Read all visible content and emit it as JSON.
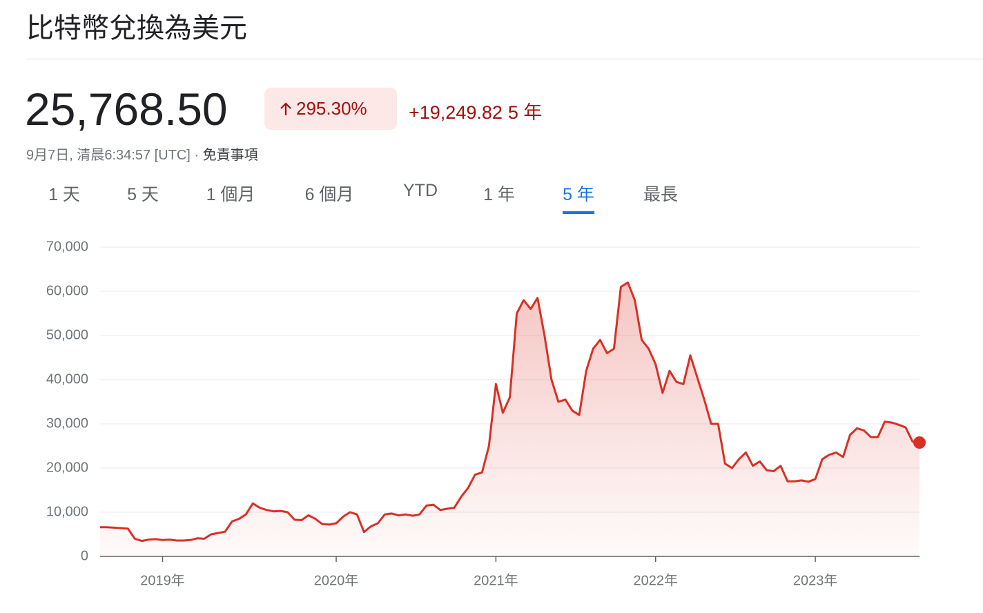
{
  "header": {
    "title": "比特幣兌換為美元"
  },
  "quote": {
    "price": "25,768.50",
    "change_percent": "295.30%",
    "change_value": "+19,249.82",
    "period": "5 年",
    "timestamp": "9月7日, 清晨6:34:57 [UTC] · ",
    "disclaimer": "免責事項"
  },
  "tabs": {
    "items": [
      "1 天",
      "5 天",
      "1 個月",
      "6 個月",
      "YTD",
      "1 年",
      "5 年",
      "最長"
    ],
    "active": 6
  },
  "chart_data": {
    "type": "line",
    "color": "#d93025",
    "categories": [
      null,
      null,
      null,
      null,
      null,
      null,
      null,
      null,
      null,
      "2019年",
      null,
      null,
      null,
      null,
      null,
      null,
      null,
      null,
      null,
      null,
      null,
      null,
      null,
      null,
      null,
      null,
      null,
      null,
      null,
      null,
      null,
      null,
      null,
      null,
      "2020年",
      null,
      null,
      null,
      null,
      null,
      null,
      null,
      null,
      null,
      null,
      null,
      null,
      null,
      null,
      null,
      null,
      null,
      null,
      null,
      null,
      null,
      null,
      "2021年",
      null,
      null,
      null,
      null,
      null,
      null,
      null,
      null,
      null,
      null,
      null,
      null,
      null,
      null,
      null,
      null,
      null,
      null,
      null,
      null,
      null,
      null,
      "2022年",
      null,
      null,
      null,
      null,
      null,
      null,
      null,
      null,
      null,
      null,
      null,
      null,
      null,
      null,
      null,
      null,
      null,
      null,
      null,
      null,
      null,
      null,
      "2023年",
      null,
      null,
      null,
      null,
      null,
      null,
      null,
      null,
      null,
      null,
      null,
      null,
      null,
      null,
      null
    ],
    "values": [
      6600,
      6600,
      6500,
      6400,
      6300,
      4000,
      3500,
      3800,
      3900,
      3700,
      3800,
      3600,
      3600,
      3700,
      4100,
      4000,
      5000,
      5300,
      5600,
      7900,
      8500,
      9500,
      12000,
      11000,
      10500,
      10200,
      10300,
      10000,
      8300,
      8200,
      9300,
      8500,
      7300,
      7200,
      7500,
      9000,
      10000,
      9500,
      5500,
      6800,
      7500,
      9500,
      9700,
      9300,
      9500,
      9200,
      9500,
      11500,
      11700,
      10500,
      10800,
      11000,
      13500,
      15500,
      18500,
      19000,
      25000,
      39000,
      32500,
      36000,
      55000,
      58000,
      56000,
      58500,
      50000,
      40000,
      35000,
      35500,
      33000,
      32000,
      42000,
      47000,
      49000,
      46000,
      47000,
      61000,
      62000,
      58000,
      49000,
      47000,
      43500,
      37000,
      42000,
      39500,
      39000,
      45500,
      40500,
      35500,
      30000,
      30000,
      21000,
      20000,
      22000,
      23500,
      20500,
      21500,
      19500,
      19300,
      20500,
      17000,
      17000,
      17200,
      16900,
      17500,
      22000,
      23000,
      23500,
      22500,
      27500,
      29000,
      28500,
      27000,
      27000,
      30500,
      30300,
      29800,
      29200,
      26000,
      25768.5
    ],
    "ylim": [
      0,
      70000
    ],
    "yticks": [
      0,
      {
        "value": 10000,
        "label": "10,000"
      },
      {
        "value": 20000,
        "label": "20,000"
      },
      {
        "value": 30000,
        "label": "30,000"
      },
      {
        "value": 40000,
        "label": "40,000"
      },
      {
        "value": 50000,
        "label": "50,000"
      },
      {
        "value": 60000,
        "label": "60,000"
      },
      {
        "value": 70000,
        "label": "70,000"
      }
    ],
    "grid": true
  }
}
